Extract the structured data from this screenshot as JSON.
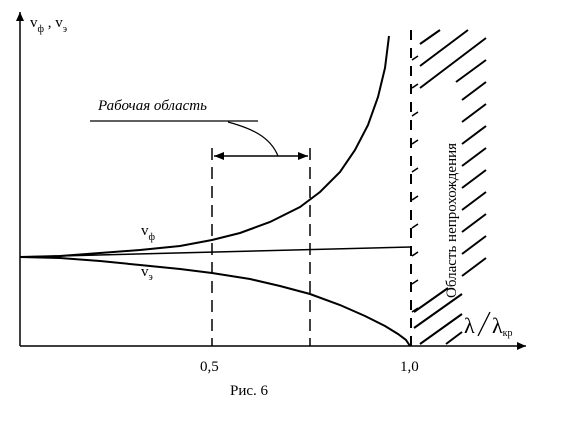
{
  "y_axis_label": {
    "main_1": "v",
    "sub_1": "ф",
    "sep": " , ",
    "main_2": "v",
    "sub_2": "э"
  },
  "x_axis_label": {
    "lambda": "λ",
    "slash": "/",
    "lambda2": "λ",
    "sub": "кр"
  },
  "ticks": {
    "t1": "0,5",
    "t2": "1,0"
  },
  "curves": {
    "phase": {
      "main": "v",
      "sub": "ф"
    },
    "group": {
      "main": "v",
      "sub": "э"
    }
  },
  "working_region_label": "Рабочая область",
  "cutoff_region_label": "Область непрохождения",
  "caption": "Рис. 6"
}
